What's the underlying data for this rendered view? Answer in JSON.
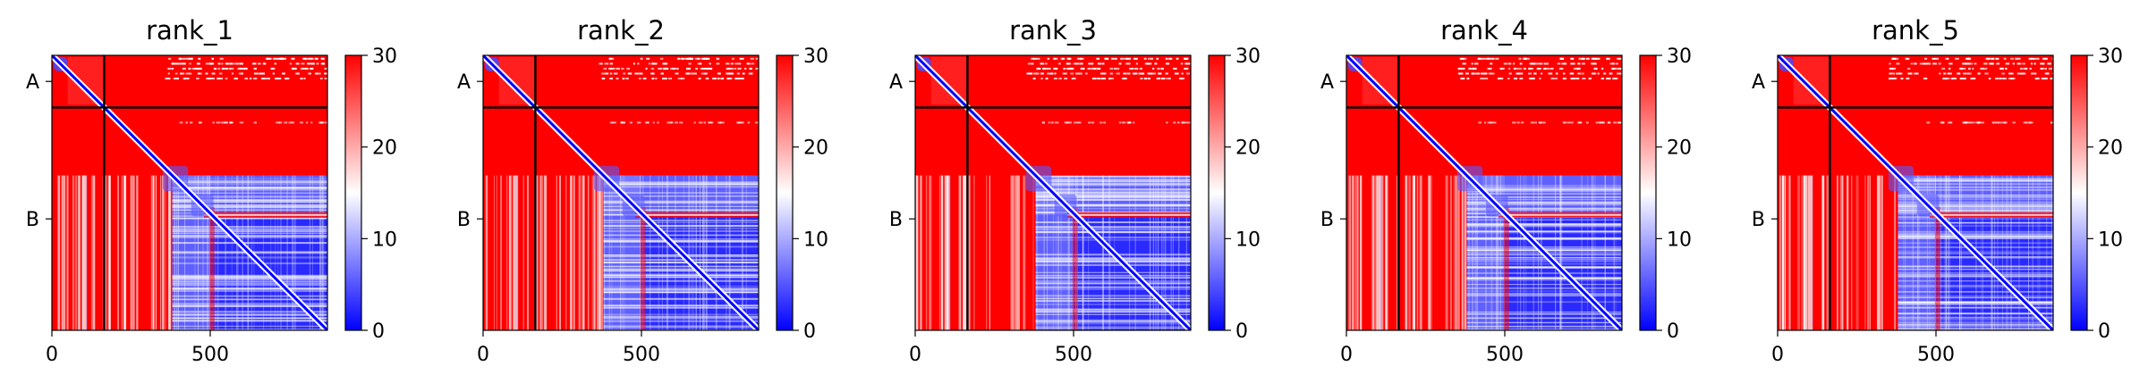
{
  "chart_data": [
    {
      "type": "heatmap",
      "title": "rank_1",
      "x_ticks": [
        0,
        500
      ],
      "y_tick_labels": [
        "A",
        "B"
      ],
      "x_range": [
        0,
        870
      ],
      "chain_boundary": 165,
      "colorbar": {
        "min": 0,
        "max": 30,
        "ticks": [
          0,
          10,
          20,
          30
        ],
        "colormap": "bwr"
      }
    },
    {
      "type": "heatmap",
      "title": "rank_2",
      "x_ticks": [
        0,
        500
      ],
      "y_tick_labels": [
        "A",
        "B"
      ],
      "x_range": [
        0,
        870
      ],
      "chain_boundary": 165,
      "colorbar": {
        "min": 0,
        "max": 30,
        "ticks": [
          0,
          10,
          20,
          30
        ],
        "colormap": "bwr"
      }
    },
    {
      "type": "heatmap",
      "title": "rank_3",
      "x_ticks": [
        0,
        500
      ],
      "y_tick_labels": [
        "A",
        "B"
      ],
      "x_range": [
        0,
        870
      ],
      "chain_boundary": 165,
      "colorbar": {
        "min": 0,
        "max": 30,
        "ticks": [
          0,
          10,
          20,
          30
        ],
        "colormap": "bwr"
      }
    },
    {
      "type": "heatmap",
      "title": "rank_4",
      "x_ticks": [
        0,
        500
      ],
      "y_tick_labels": [
        "A",
        "B"
      ],
      "x_range": [
        0,
        870
      ],
      "chain_boundary": 165,
      "colorbar": {
        "min": 0,
        "max": 30,
        "ticks": [
          0,
          10,
          20,
          30
        ],
        "colormap": "bwr"
      }
    },
    {
      "type": "heatmap",
      "title": "rank_5",
      "x_ticks": [
        0,
        500
      ],
      "y_tick_labels": [
        "A",
        "B"
      ],
      "x_range": [
        0,
        870
      ],
      "chain_boundary": 165,
      "colorbar": {
        "min": 0,
        "max": 30,
        "ticks": [
          0,
          10,
          20,
          30
        ],
        "colormap": "bwr"
      }
    }
  ],
  "colors": {
    "high": "#ff0000",
    "mid": "#ffffff",
    "low": "#0000ff",
    "divider": "#000000"
  }
}
